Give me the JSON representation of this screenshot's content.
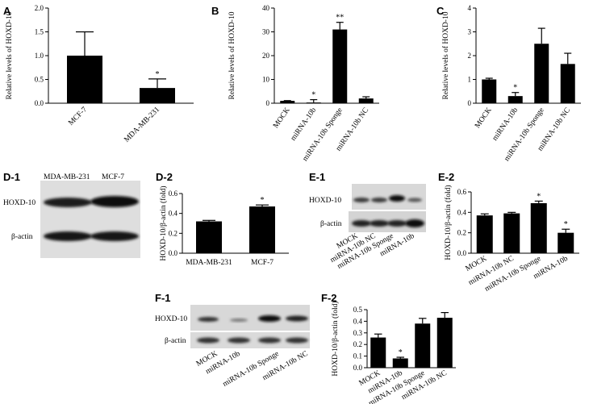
{
  "chart_data": [
    {
      "id": "A",
      "panel": "A",
      "type": "bar",
      "ylabel": "Relative levels of HOXD-10",
      "ylim": [
        0,
        2
      ],
      "yticks": [
        0,
        0.5,
        1,
        1.5,
        2
      ],
      "ytick_labels": [
        "0.0",
        "0.5",
        "1.0",
        "1.5",
        "2.0"
      ],
      "categories": [
        "MCF-7",
        "MDA-MB-231"
      ],
      "values": [
        1.0,
        0.32
      ],
      "errors": [
        0.5,
        0.19
      ],
      "significance": [
        "",
        "*"
      ]
    },
    {
      "id": "B",
      "panel": "B",
      "type": "bar",
      "ylabel": "Relative levels of HOXD-10",
      "ylim": [
        0,
        40
      ],
      "yticks": [
        0,
        10,
        20,
        30,
        40
      ],
      "ytick_labels": [
        "0",
        "10",
        "20",
        "30",
        "40"
      ],
      "categories": [
        "MOCK",
        "miRNA-10b",
        "miRNA-10b Sponge",
        "miRNA-10b NC"
      ],
      "values": [
        1.0,
        0.3,
        31.0,
        2.0
      ],
      "errors": [
        0.1,
        1.2,
        3.0,
        0.7
      ],
      "significance": [
        "",
        "*",
        "**",
        ""
      ]
    },
    {
      "id": "C",
      "panel": "C",
      "type": "bar",
      "ylabel": "Relative levels of HOXD-10",
      "ylim": [
        0,
        4
      ],
      "yticks": [
        0,
        1,
        2,
        3,
        4
      ],
      "ytick_labels": [
        "0",
        "1",
        "2",
        "3",
        "4"
      ],
      "categories": [
        "MOCK",
        "miRNA-10b",
        "miRNA-10b Sponge",
        "miRNA-10b NC"
      ],
      "values": [
        1.0,
        0.3,
        2.5,
        1.65
      ],
      "errors": [
        0.05,
        0.15,
        0.65,
        0.45
      ],
      "significance": [
        "",
        "*",
        "",
        ""
      ]
    },
    {
      "id": "D2",
      "panel": "D-2",
      "type": "bar",
      "ylabel": "HOXD-10/β-actin (fold)",
      "ylim": [
        0,
        0.6
      ],
      "yticks": [
        0,
        0.2,
        0.4,
        0.6
      ],
      "ytick_labels": [
        "0.0",
        "0.2",
        "0.4",
        "0.6"
      ],
      "categories": [
        "MDA-MB-231",
        "MCF-7"
      ],
      "values": [
        0.32,
        0.47
      ],
      "errors": [
        0.01,
        0.015
      ],
      "significance": [
        "",
        "*"
      ]
    },
    {
      "id": "E2",
      "panel": "E-2",
      "type": "bar",
      "ylabel": "HOXD-10/β-actin (fold)",
      "ylim": [
        0,
        0.6
      ],
      "yticks": [
        0,
        0.2,
        0.4,
        0.6
      ],
      "ytick_labels": [
        "0.0",
        "0.2",
        "0.4",
        "0.6"
      ],
      "categories": [
        "MOCK",
        "miRNA-10b NC",
        "miRNA-10b Sponge",
        "miRNA-10b"
      ],
      "values": [
        0.37,
        0.39,
        0.49,
        0.2
      ],
      "errors": [
        0.015,
        0.01,
        0.02,
        0.035
      ],
      "significance": [
        "",
        "",
        "*",
        "*"
      ]
    },
    {
      "id": "F2",
      "panel": "F-2",
      "type": "bar",
      "ylabel": "HOXD-10/β-actin (fold)",
      "ylim": [
        0,
        0.5
      ],
      "yticks": [
        0,
        0.1,
        0.2,
        0.3,
        0.4,
        0.5
      ],
      "ytick_labels": [
        "0.0",
        "0.1",
        "0.2",
        "0.3",
        "0.4",
        "0.5"
      ],
      "categories": [
        "MOCK",
        "miRNA-10b",
        "miRNA-10b Sponge",
        "miRNA-10b NC"
      ],
      "values": [
        0.26,
        0.08,
        0.38,
        0.43
      ],
      "errors": [
        0.03,
        0.01,
        0.045,
        0.045
      ],
      "significance": [
        "",
        "*",
        "",
        ""
      ]
    }
  ],
  "blots": {
    "D1": {
      "panel": "D-1",
      "lanes": [
        "MDA-MB-231",
        "MCF-7"
      ],
      "rows": [
        "HOXD-10",
        "β-actin"
      ]
    },
    "E1": {
      "panel": "E-1",
      "lanes": [
        "MOCK",
        "miRNA-10b NC",
        "miRNA-10b Sponge",
        "miRNA-10b"
      ],
      "rows": [
        "HOXD-10",
        "β-actin"
      ]
    },
    "F1": {
      "panel": "F-1",
      "lanes": [
        "MOCK",
        "miRNA-10b",
        "miRNA-10b Sponge",
        "miRNA-10b NC"
      ],
      "rows": [
        "HOXD-10",
        "β-actin"
      ]
    }
  }
}
